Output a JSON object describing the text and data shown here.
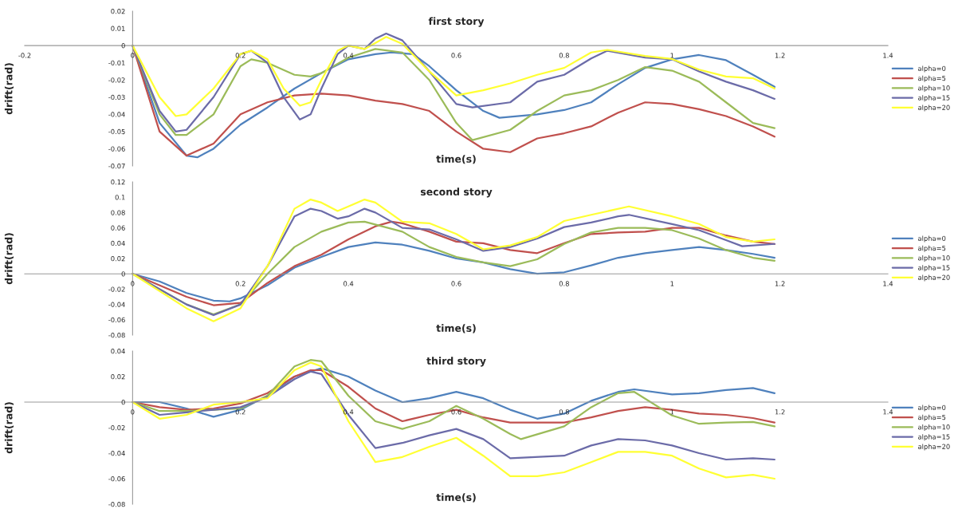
{
  "chart_data": [
    {
      "type": "line",
      "title": "first story",
      "xlabel": "time(s)",
      "ylabel": "drift(rad)",
      "xlim": [
        -0.2,
        1.4
      ],
      "xticks": [
        -0.2,
        0,
        0.2,
        0.4,
        0.6,
        0.8,
        1,
        1.2,
        1.4
      ],
      "ylim": [
        -0.07,
        0.02
      ],
      "yticks": [
        -0.07,
        -0.06,
        -0.05,
        -0.04,
        -0.03,
        -0.02,
        -0.01,
        0,
        0.01,
        0.02
      ],
      "grid": false,
      "legend": "right",
      "marker": "none",
      "line_style": "solid",
      "series": [
        {
          "name": "alpha=0",
          "color": "#4f81bd",
          "x": [
            0,
            0.05,
            0.1,
            0.12,
            0.15,
            0.2,
            0.25,
            0.3,
            0.35,
            0.4,
            0.45,
            0.48,
            0.52,
            0.55,
            0.6,
            0.65,
            0.68,
            0.75,
            0.8,
            0.85,
            0.9,
            0.95,
            1.0,
            1.05,
            1.1,
            1.15,
            1.19
          ],
          "values": [
            0,
            -0.045,
            -0.064,
            -0.065,
            -0.06,
            -0.046,
            -0.036,
            -0.025,
            -0.016,
            -0.008,
            -0.005,
            -0.004,
            -0.005,
            -0.012,
            -0.026,
            -0.038,
            -0.042,
            -0.04,
            -0.0375,
            -0.033,
            -0.0225,
            -0.013,
            -0.008,
            -0.0055,
            -0.0085,
            -0.017,
            -0.024
          ]
        },
        {
          "name": "alpha=5",
          "color": "#c0504d",
          "x": [
            0,
            0.05,
            0.1,
            0.15,
            0.2,
            0.25,
            0.3,
            0.35,
            0.4,
            0.45,
            0.5,
            0.55,
            0.6,
            0.65,
            0.7,
            0.75,
            0.8,
            0.85,
            0.9,
            0.95,
            1.0,
            1.05,
            1.1,
            1.15,
            1.19
          ],
          "values": [
            0,
            -0.05,
            -0.064,
            -0.057,
            -0.04,
            -0.033,
            -0.029,
            -0.028,
            -0.029,
            -0.032,
            -0.034,
            -0.038,
            -0.05,
            -0.06,
            -0.062,
            -0.054,
            -0.051,
            -0.047,
            -0.039,
            -0.033,
            -0.034,
            -0.037,
            -0.041,
            -0.047,
            -0.053
          ]
        },
        {
          "name": "alpha=10",
          "color": "#9bbb59",
          "x": [
            0,
            0.05,
            0.08,
            0.1,
            0.15,
            0.2,
            0.22,
            0.25,
            0.3,
            0.33,
            0.35,
            0.4,
            0.45,
            0.5,
            0.55,
            0.6,
            0.63,
            0.7,
            0.75,
            0.8,
            0.85,
            0.9,
            0.95,
            1.0,
            1.05,
            1.1,
            1.15,
            1.19
          ],
          "values": [
            0,
            -0.04,
            -0.052,
            -0.052,
            -0.04,
            -0.012,
            -0.008,
            -0.01,
            -0.017,
            -0.018,
            -0.016,
            -0.007,
            -0.002,
            -0.004,
            -0.02,
            -0.045,
            -0.055,
            -0.049,
            -0.038,
            -0.029,
            -0.026,
            -0.02,
            -0.0125,
            -0.0146,
            -0.021,
            -0.033,
            -0.045,
            -0.048
          ]
        },
        {
          "name": "alpha=15",
          "color": "#6b6ba8",
          "x": [
            0,
            0.05,
            0.08,
            0.1,
            0.15,
            0.2,
            0.22,
            0.25,
            0.28,
            0.31,
            0.33,
            0.35,
            0.38,
            0.4,
            0.43,
            0.45,
            0.47,
            0.5,
            0.55,
            0.6,
            0.63,
            0.7,
            0.75,
            0.8,
            0.85,
            0.88,
            0.95,
            1.0,
            1.05,
            1.1,
            1.15,
            1.19
          ],
          "values": [
            0,
            -0.038,
            -0.05,
            -0.049,
            -0.03,
            -0.005,
            -0.003,
            -0.01,
            -0.03,
            -0.043,
            -0.04,
            -0.025,
            -0.005,
            0,
            -0.002,
            0.004,
            0.007,
            0.003,
            -0.015,
            -0.034,
            -0.036,
            -0.033,
            -0.021,
            -0.017,
            -0.0075,
            -0.003,
            -0.007,
            -0.008,
            -0.015,
            -0.021,
            -0.026,
            -0.031
          ]
        },
        {
          "name": "alpha=20",
          "color": "#ffff33",
          "x": [
            0,
            0.05,
            0.08,
            0.1,
            0.15,
            0.2,
            0.22,
            0.25,
            0.28,
            0.31,
            0.33,
            0.35,
            0.38,
            0.4,
            0.43,
            0.47,
            0.5,
            0.55,
            0.6,
            0.65,
            0.7,
            0.75,
            0.8,
            0.85,
            0.88,
            0.95,
            1.0,
            1.05,
            1.1,
            1.15,
            1.19
          ],
          "values": [
            0,
            -0.03,
            -0.041,
            -0.04,
            -0.025,
            -0.005,
            -0.003,
            -0.008,
            -0.025,
            -0.035,
            -0.033,
            -0.02,
            -0.003,
            0,
            -0.002,
            0.005,
            0.001,
            -0.015,
            -0.029,
            -0.026,
            -0.022,
            -0.017,
            -0.013,
            -0.004,
            -0.0025,
            -0.006,
            -0.0078,
            -0.014,
            -0.018,
            -0.019,
            -0.025
          ]
        }
      ]
    },
    {
      "type": "line",
      "title": "second story",
      "xlabel": "time(s)",
      "ylabel": "drift(rad)",
      "xlim": [
        -0.2,
        1.4
      ],
      "xticks": [
        0,
        0.2,
        0.4,
        0.6,
        0.8,
        1,
        1.2,
        1.4
      ],
      "ylim": [
        -0.08,
        0.12
      ],
      "yticks": [
        -0.08,
        -0.06,
        -0.04,
        -0.02,
        0,
        0.02,
        0.04,
        0.06,
        0.08,
        0.1,
        0.12
      ],
      "grid": false,
      "legend": "right",
      "marker": "none",
      "line_style": "solid",
      "series": [
        {
          "name": "alpha=0",
          "color": "#4f81bd",
          "x": [
            0,
            0.05,
            0.1,
            0.15,
            0.18,
            0.2,
            0.25,
            0.3,
            0.35,
            0.4,
            0.45,
            0.5,
            0.55,
            0.6,
            0.65,
            0.7,
            0.75,
            0.8,
            0.85,
            0.9,
            0.95,
            1.0,
            1.05,
            1.1,
            1.15,
            1.19
          ],
          "values": [
            0,
            -0.01,
            -0.025,
            -0.035,
            -0.036,
            -0.032,
            -0.015,
            0.008,
            0.022,
            0.035,
            0.041,
            0.038,
            0.03,
            0.02,
            0.015,
            0.006,
            0,
            0.002,
            0.011,
            0.021,
            0.027,
            0.031,
            0.035,
            0.031,
            0.026,
            0.021
          ]
        },
        {
          "name": "alpha=5",
          "color": "#c0504d",
          "x": [
            0,
            0.1,
            0.15,
            0.2,
            0.25,
            0.3,
            0.35,
            0.4,
            0.45,
            0.48,
            0.5,
            0.55,
            0.6,
            0.65,
            0.7,
            0.75,
            0.8,
            0.85,
            0.9,
            0.95,
            1.0,
            1.05,
            1.1,
            1.15,
            1.19
          ],
          "values": [
            0,
            -0.03,
            -0.041,
            -0.038,
            -0.012,
            0.01,
            0.025,
            0.045,
            0.062,
            0.068,
            0.066,
            0.055,
            0.042,
            0.04,
            0.031,
            0.027,
            0.04,
            0.052,
            0.054,
            0.055,
            0.06,
            0.06,
            0.05,
            0.042,
            0.039
          ]
        },
        {
          "name": "alpha=10",
          "color": "#9bbb59",
          "x": [
            0,
            0.1,
            0.15,
            0.2,
            0.25,
            0.3,
            0.35,
            0.4,
            0.43,
            0.5,
            0.55,
            0.6,
            0.65,
            0.7,
            0.75,
            0.8,
            0.85,
            0.9,
            0.95,
            1.0,
            1.05,
            1.1,
            1.15,
            1.19
          ],
          "values": [
            0,
            -0.04,
            -0.053,
            -0.04,
            0,
            0.035,
            0.055,
            0.067,
            0.068,
            0.055,
            0.035,
            0.022,
            0.015,
            0.01,
            0.019,
            0.039,
            0.054,
            0.06,
            0.06,
            0.057,
            0.046,
            0.031,
            0.021,
            0.017
          ]
        },
        {
          "name": "alpha=15",
          "color": "#6b6ba8",
          "x": [
            0,
            0.1,
            0.15,
            0.2,
            0.25,
            0.3,
            0.33,
            0.35,
            0.38,
            0.4,
            0.43,
            0.45,
            0.5,
            0.55,
            0.6,
            0.65,
            0.7,
            0.75,
            0.8,
            0.85,
            0.9,
            0.92,
            1.0,
            1.05,
            1.1,
            1.13,
            1.19
          ],
          "values": [
            0,
            -0.04,
            -0.054,
            -0.04,
            0.01,
            0.075,
            0.085,
            0.082,
            0.072,
            0.075,
            0.085,
            0.08,
            0.06,
            0.058,
            0.045,
            0.03,
            0.035,
            0.046,
            0.061,
            0.067,
            0.075,
            0.077,
            0.065,
            0.057,
            0.044,
            0.036,
            0.039
          ]
        },
        {
          "name": "alpha=20",
          "color": "#ffff33",
          "x": [
            0,
            0.1,
            0.15,
            0.2,
            0.25,
            0.3,
            0.33,
            0.35,
            0.38,
            0.4,
            0.43,
            0.45,
            0.5,
            0.55,
            0.6,
            0.65,
            0.7,
            0.75,
            0.8,
            0.85,
            0.92,
            1.0,
            1.05,
            1.1,
            1.15,
            1.19
          ],
          "values": [
            0,
            -0.045,
            -0.062,
            -0.045,
            0.01,
            0.085,
            0.097,
            0.093,
            0.082,
            0.088,
            0.097,
            0.093,
            0.068,
            0.066,
            0.052,
            0.032,
            0.037,
            0.048,
            0.069,
            0.077,
            0.088,
            0.075,
            0.065,
            0.048,
            0.042,
            0.045
          ]
        }
      ]
    },
    {
      "type": "line",
      "title": "third story",
      "xlabel": "time(s)",
      "ylabel": "drift(rad)",
      "xlim": [
        -0.2,
        1.4
      ],
      "xticks": [
        0,
        0.2,
        0.4,
        0.6,
        0.8,
        1,
        1.2,
        1.4
      ],
      "ylim": [
        -0.08,
        0.04
      ],
      "yticks": [
        -0.08,
        -0.06,
        -0.04,
        -0.02,
        0,
        0.02,
        0.04
      ],
      "grid": false,
      "legend": "right",
      "marker": "none",
      "line_style": "solid",
      "series": [
        {
          "name": "alpha=0",
          "color": "#4f81bd",
          "x": [
            0,
            0.05,
            0.1,
            0.15,
            0.2,
            0.25,
            0.3,
            0.35,
            0.4,
            0.45,
            0.5,
            0.55,
            0.6,
            0.65,
            0.7,
            0.75,
            0.8,
            0.85,
            0.9,
            0.93,
            1.0,
            1.05,
            1.1,
            1.15,
            1.19
          ],
          "values": [
            0,
            0,
            -0.005,
            -0.0115,
            -0.006,
            0.005,
            0.02,
            0.0265,
            0.02,
            0.009,
            0,
            0.003,
            0.008,
            0.003,
            -0.006,
            -0.013,
            -0.009,
            0.001,
            0.008,
            0.01,
            0.006,
            0.007,
            0.0095,
            0.011,
            0.007
          ]
        },
        {
          "name": "alpha=5",
          "color": "#c0504d",
          "x": [
            0,
            0.05,
            0.1,
            0.15,
            0.2,
            0.25,
            0.3,
            0.33,
            0.35,
            0.4,
            0.45,
            0.5,
            0.55,
            0.6,
            0.65,
            0.7,
            0.8,
            0.85,
            0.9,
            0.95,
            1.0,
            1.05,
            1.1,
            1.15,
            1.19
          ],
          "values": [
            0,
            -0.004,
            -0.006,
            -0.005,
            -0.001,
            0.007,
            0.02,
            0.025,
            0.025,
            0.012,
            -0.005,
            -0.015,
            -0.01,
            -0.006,
            -0.012,
            -0.016,
            -0.016,
            -0.012,
            -0.007,
            -0.004,
            -0.006,
            -0.009,
            -0.01,
            -0.0125,
            -0.016
          ]
        },
        {
          "name": "alpha=10",
          "color": "#9bbb59",
          "x": [
            0,
            0.05,
            0.1,
            0.15,
            0.2,
            0.25,
            0.3,
            0.33,
            0.35,
            0.4,
            0.45,
            0.5,
            0.55,
            0.6,
            0.65,
            0.7,
            0.72,
            0.8,
            0.85,
            0.9,
            0.93,
            1.0,
            1.05,
            1.1,
            1.15,
            1.19
          ],
          "values": [
            0,
            -0.007,
            -0.007,
            -0.006,
            -0.005,
            0.005,
            0.028,
            0.033,
            0.032,
            0.005,
            -0.015,
            -0.021,
            -0.015,
            -0.003,
            -0.013,
            -0.025,
            -0.029,
            -0.019,
            -0.004,
            0.007,
            0.008,
            -0.0105,
            -0.017,
            -0.016,
            -0.0155,
            -0.019
          ]
        },
        {
          "name": "alpha=15",
          "color": "#6b6ba8",
          "x": [
            0,
            0.05,
            0.1,
            0.15,
            0.2,
            0.25,
            0.3,
            0.33,
            0.35,
            0.4,
            0.45,
            0.5,
            0.55,
            0.6,
            0.65,
            0.7,
            0.8,
            0.85,
            0.9,
            0.95,
            1.0,
            1.05,
            1.1,
            1.15,
            1.19
          ],
          "values": [
            0,
            -0.01,
            -0.008,
            -0.006,
            -0.004,
            0.004,
            0.018,
            0.024,
            0.022,
            -0.01,
            -0.036,
            -0.032,
            -0.026,
            -0.021,
            -0.029,
            -0.044,
            -0.042,
            -0.034,
            -0.029,
            -0.03,
            -0.034,
            -0.04,
            -0.045,
            -0.044,
            -0.045
          ]
        },
        {
          "name": "alpha=20",
          "color": "#ffff33",
          "x": [
            0,
            0.05,
            0.1,
            0.15,
            0.2,
            0.25,
            0.3,
            0.33,
            0.35,
            0.4,
            0.45,
            0.5,
            0.55,
            0.6,
            0.65,
            0.7,
            0.75,
            0.8,
            0.85,
            0.9,
            0.95,
            1.0,
            1.05,
            1.1,
            1.15,
            1.19
          ],
          "values": [
            0,
            -0.013,
            -0.01,
            -0.002,
            0,
            0.003,
            0.025,
            0.031,
            0.028,
            -0.015,
            -0.047,
            -0.043,
            -0.035,
            -0.028,
            -0.042,
            -0.058,
            -0.058,
            -0.055,
            -0.047,
            -0.039,
            -0.039,
            -0.042,
            -0.052,
            -0.059,
            -0.057,
            -0.06
          ]
        }
      ]
    }
  ]
}
